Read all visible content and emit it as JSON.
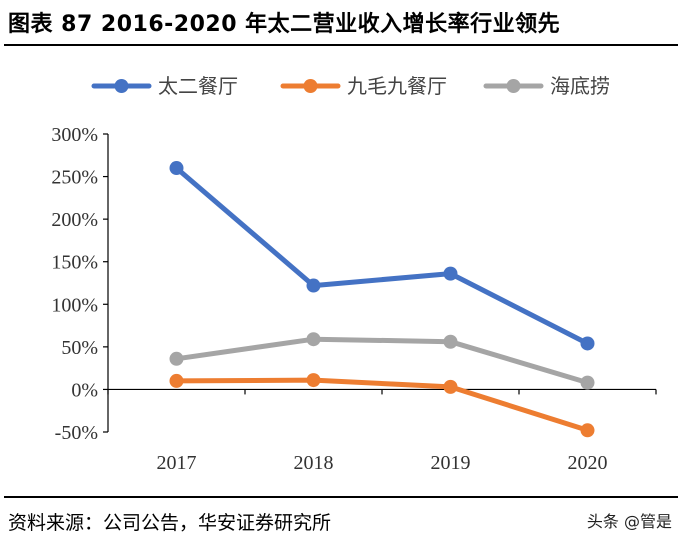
{
  "header": {
    "title": "图表 87 2016-2020 年太二营业收入增长率行业领先"
  },
  "footer": {
    "source": "资料来源：公司公告，华安证券研究所",
    "watermark": "头条 @管是"
  },
  "chart_data": {
    "type": "line",
    "title": "图表 87 2016-2020 年太二营业收入增长率行业领先",
    "xlabel": "",
    "ylabel": "",
    "categories": [
      "2017",
      "2018",
      "2019",
      "2020"
    ],
    "ylim": [
      -50,
      300
    ],
    "yticks": [
      -50,
      0,
      50,
      100,
      150,
      200,
      250,
      300
    ],
    "ytick_labels": [
      "-50%",
      "0%",
      "50%",
      "100%",
      "150%",
      "200%",
      "250%",
      "300%"
    ],
    "legend_position": "top",
    "series": [
      {
        "name": "太二餐厅",
        "color": "#4472C4",
        "values": [
          260,
          122,
          136,
          54
        ]
      },
      {
        "name": "九毛九餐厅",
        "color": "#ED7D31",
        "values": [
          10,
          11,
          3,
          -48
        ]
      },
      {
        "name": "海底捞",
        "color": "#A5A5A5",
        "values": [
          36,
          59,
          56,
          8
        ]
      }
    ]
  }
}
